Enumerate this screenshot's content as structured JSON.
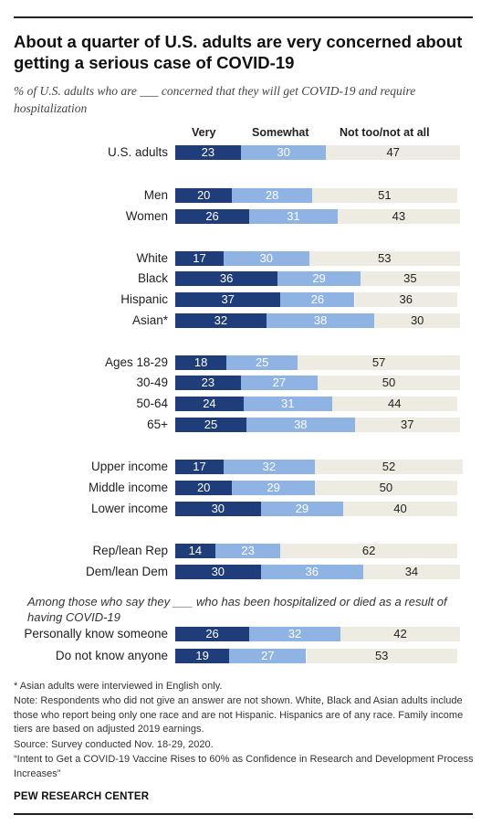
{
  "title": "About a quarter of U.S. adults are very concerned about getting a serious case of COVID-19",
  "subtitle": "% of U.S. adults who are ___ concerned that they will get COVID-19 and require hospitalization",
  "sub_lead": "Among those who say they ___ who has been hospitalized or died as a result of having COVID-19",
  "notes": {
    "asterisk": "* Asian adults were interviewed in English only.",
    "note": "Note: Respondents who did not give an answer are not shown. White, Black and Asian adults include those who report being only one race and are not Hispanic. Hispanics are of any race. Family income tiers are based on adjusted 2019 earnings.",
    "source": "Source: Survey conducted Nov. 18-29, 2020.",
    "report": "“Intent to Get a COVID-19 Vaccine Rises to 60% as Confidence in Research and Development Process Increases”"
  },
  "brand": "PEW RESEARCH CENTER",
  "colors": {
    "very": "#1f3d7a",
    "somewhat": "#8fb3e3",
    "not_too": "#eeebe3"
  },
  "chart_data": {
    "type": "bar",
    "stacked": true,
    "orientation": "horizontal",
    "xlim": [
      0,
      100
    ],
    "series_labels": [
      "Very",
      "Somewhat",
      "Not too/not at all"
    ],
    "categories": [
      "U.S. adults",
      "Men",
      "Women",
      "White",
      "Black",
      "Hispanic",
      "Asian*",
      "Ages 18-29",
      "30-49",
      "50-64",
      "65+",
      "Upper income",
      "Middle income",
      "Lower income",
      "Rep/lean Rep",
      "Dem/lean Dem",
      "Personally know someone",
      "Do not know anyone"
    ],
    "series": [
      {
        "name": "Very",
        "values": [
          23,
          20,
          26,
          17,
          36,
          37,
          32,
          18,
          23,
          24,
          25,
          17,
          20,
          30,
          14,
          30,
          26,
          19
        ]
      },
      {
        "name": "Somewhat",
        "values": [
          30,
          28,
          31,
          30,
          29,
          26,
          38,
          25,
          27,
          31,
          38,
          32,
          29,
          29,
          23,
          36,
          32,
          27
        ]
      },
      {
        "name": "Not too/not at all",
        "values": [
          47,
          51,
          43,
          53,
          35,
          36,
          30,
          57,
          50,
          44,
          37,
          52,
          50,
          40,
          62,
          34,
          42,
          53
        ]
      }
    ]
  }
}
